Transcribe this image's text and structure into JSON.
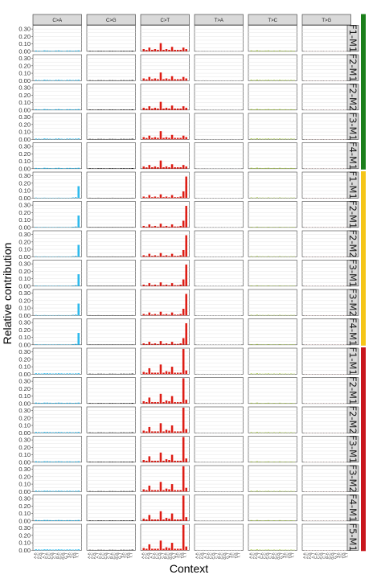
{
  "chart_data": {
    "type": "bar",
    "xlabel": "Context",
    "ylabel": "Relative contribution",
    "ylim": [
      0,
      0.35
    ],
    "yticks": [
      "0.00",
      "0.10",
      "0.20",
      "0.30"
    ],
    "mutation_types": [
      "C>A",
      "C>G",
      "C>T",
      "T>A",
      "T>C",
      "T>G"
    ],
    "type_colors": {
      "C>A": "#2EBAED",
      "C>G": "#000000",
      "C>T": "#DE1C14",
      "T>A": "#D4D2D2",
      "T>C": "#ADCC54",
      "T>G": "#F0D0CE"
    },
    "contexts": [
      "A.A",
      "A.C",
      "A.G",
      "A.T",
      "C.A",
      "C.C",
      "C.G",
      "C.T",
      "G.A",
      "G.C",
      "G.G",
      "G.T",
      "T.A",
      "T.C",
      "T.G",
      "T.T"
    ],
    "group_colors": [
      "#1b7f1b",
      "#f5c518",
      "#c8161d"
    ],
    "samples": [
      {
        "label": "F1-M1",
        "group": 0,
        "profile": "A"
      },
      {
        "label": "F2-M1",
        "group": 0,
        "profile": "A"
      },
      {
        "label": "F2-M2",
        "group": 0,
        "profile": "A"
      },
      {
        "label": "F3-M1",
        "group": 0,
        "profile": "A"
      },
      {
        "label": "F4-M1",
        "group": 0,
        "profile": "A"
      },
      {
        "label": "F1-M1",
        "group": 1,
        "profile": "B"
      },
      {
        "label": "F2-M1",
        "group": 1,
        "profile": "B"
      },
      {
        "label": "F2-M2",
        "group": 1,
        "profile": "B"
      },
      {
        "label": "F3-M1",
        "group": 1,
        "profile": "B"
      },
      {
        "label": "F3-M2",
        "group": 1,
        "profile": "B"
      },
      {
        "label": "F4-M1",
        "group": 1,
        "profile": "B"
      },
      {
        "label": "F1-M1",
        "group": 2,
        "profile": "C"
      },
      {
        "label": "F2-M1",
        "group": 2,
        "profile": "C"
      },
      {
        "label": "F2-M2",
        "group": 2,
        "profile": "C"
      },
      {
        "label": "F3-M1",
        "group": 2,
        "profile": "C"
      },
      {
        "label": "F3-M2",
        "group": 2,
        "profile": "C"
      },
      {
        "label": "F4-M1",
        "group": 2,
        "profile": "C"
      },
      {
        "label": "F5-M1",
        "group": 2,
        "profile": "C"
      }
    ],
    "profiles": {
      "A": {
        "C>A": [
          0.01,
          0.008,
          0.006,
          0.012,
          0.01,
          0.008,
          0.006,
          0.01,
          0.012,
          0.008,
          0.006,
          0.01,
          0.01,
          0.008,
          0.01,
          0.012
        ],
        "C>G": [
          0.006,
          0.005,
          0.004,
          0.006,
          0.006,
          0.005,
          0.004,
          0.006,
          0.006,
          0.005,
          0.004,
          0.006,
          0.006,
          0.005,
          0.006,
          0.008
        ],
        "C>T": [
          0.03,
          0.018,
          0.05,
          0.02,
          0.03,
          0.02,
          0.11,
          0.02,
          0.03,
          0.02,
          0.06,
          0.02,
          0.02,
          0.02,
          0.05,
          0.03
        ],
        "T>A": [
          0.006,
          0.004,
          0.006,
          0.005,
          0.004,
          0.004,
          0.004,
          0.004,
          0.004,
          0.004,
          0.004,
          0.004,
          0.005,
          0.004,
          0.004,
          0.005
        ],
        "T>C": [
          0.012,
          0.008,
          0.014,
          0.01,
          0.008,
          0.01,
          0.012,
          0.008,
          0.01,
          0.008,
          0.012,
          0.008,
          0.01,
          0.008,
          0.01,
          0.008
        ],
        "T>G": [
          0.004,
          0.003,
          0.004,
          0.003,
          0.003,
          0.003,
          0.004,
          0.003,
          0.003,
          0.003,
          0.003,
          0.003,
          0.003,
          0.003,
          0.004,
          0.004
        ]
      },
      "B": {
        "C>A": [
          0.006,
          0.004,
          0.004,
          0.005,
          0.004,
          0.004,
          0.004,
          0.004,
          0.005,
          0.004,
          0.004,
          0.004,
          0.004,
          0.008,
          0.012,
          0.16
        ],
        "C>G": [
          0.004,
          0.003,
          0.003,
          0.004,
          0.003,
          0.003,
          0.003,
          0.003,
          0.004,
          0.003,
          0.003,
          0.003,
          0.003,
          0.003,
          0.003,
          0.004
        ],
        "C>T": [
          0.02,
          0.01,
          0.04,
          0.012,
          0.02,
          0.01,
          0.05,
          0.012,
          0.02,
          0.01,
          0.04,
          0.012,
          0.012,
          0.02,
          0.09,
          0.29
        ],
        "T>A": [
          0.004,
          0.003,
          0.003,
          0.003,
          0.003,
          0.003,
          0.003,
          0.003,
          0.003,
          0.003,
          0.003,
          0.003,
          0.003,
          0.003,
          0.003,
          0.004
        ],
        "T>C": [
          0.008,
          0.005,
          0.01,
          0.006,
          0.006,
          0.005,
          0.008,
          0.005,
          0.006,
          0.005,
          0.008,
          0.005,
          0.006,
          0.005,
          0.006,
          0.006
        ],
        "T>G": [
          0.004,
          0.003,
          0.003,
          0.003,
          0.003,
          0.003,
          0.003,
          0.003,
          0.003,
          0.003,
          0.003,
          0.003,
          0.003,
          0.003,
          0.003,
          0.02
        ]
      },
      "C": {
        "C>A": [
          0.012,
          0.01,
          0.008,
          0.012,
          0.012,
          0.01,
          0.008,
          0.01,
          0.012,
          0.01,
          0.008,
          0.01,
          0.01,
          0.008,
          0.01,
          0.012
        ],
        "C>G": [
          0.006,
          0.005,
          0.004,
          0.006,
          0.006,
          0.005,
          0.004,
          0.006,
          0.006,
          0.005,
          0.004,
          0.006,
          0.006,
          0.005,
          0.006,
          0.008
        ],
        "C>T": [
          0.03,
          0.02,
          0.08,
          0.02,
          0.02,
          0.02,
          0.13,
          0.02,
          0.04,
          0.03,
          0.1,
          0.02,
          0.02,
          0.02,
          0.34,
          0.05
        ],
        "T>A": [
          0.006,
          0.004,
          0.005,
          0.004,
          0.004,
          0.004,
          0.004,
          0.004,
          0.004,
          0.004,
          0.004,
          0.004,
          0.004,
          0.004,
          0.004,
          0.004
        ],
        "T>C": [
          0.01,
          0.006,
          0.012,
          0.008,
          0.006,
          0.008,
          0.01,
          0.006,
          0.008,
          0.006,
          0.01,
          0.006,
          0.008,
          0.006,
          0.008,
          0.006
        ],
        "T>G": [
          0.004,
          0.003,
          0.003,
          0.003,
          0.003,
          0.003,
          0.003,
          0.003,
          0.003,
          0.003,
          0.003,
          0.003,
          0.003,
          0.003,
          0.003,
          0.004
        ]
      }
    }
  }
}
